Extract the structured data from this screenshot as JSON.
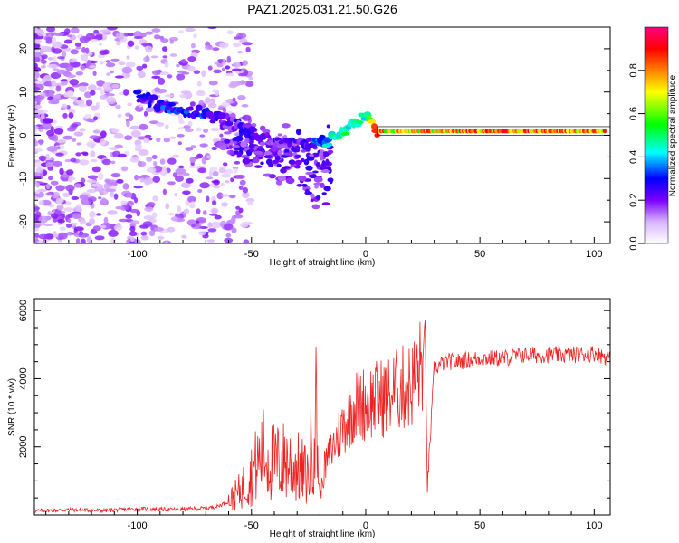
{
  "title": "PAZ1.2025.031.21.50.G26",
  "chart_data": [
    {
      "type": "heatmap",
      "xlabel": "Height of straight line (km)",
      "ylabel": "Frequency (Hz)",
      "xlim": [
        -145,
        107
      ],
      "ylim": [
        -25,
        25
      ],
      "xticks": [
        -100,
        -50,
        0,
        50,
        100
      ],
      "yticks": [
        -20,
        -10,
        0,
        10,
        20
      ],
      "colorbar": {
        "label": "Normalized spectral amplitude",
        "range": [
          0,
          1
        ],
        "ticks": [
          0.0,
          0.2,
          0.4,
          0.6,
          0.8
        ],
        "colors": [
          "#ffffff",
          "#d9b3ff",
          "#7a00ff",
          "#0000ff",
          "#00ffff",
          "#00ff00",
          "#ffff00",
          "#ff8000",
          "#ff0000",
          "#ff0080"
        ]
      },
      "tone_track": {
        "x": [
          -100,
          -90,
          -80,
          -70,
          -60,
          -50,
          -40,
          -30,
          -20,
          -15,
          -10,
          -5,
          0,
          5,
          20,
          50,
          80,
          105
        ],
        "freq": [
          9,
          7,
          6,
          5,
          3,
          1,
          -1,
          -2,
          -2,
          -1,
          1,
          3,
          4,
          1,
          1,
          1,
          1,
          1
        ],
        "amplitude": [
          0.25,
          0.3,
          0.3,
          0.3,
          0.2,
          0.25,
          0.2,
          0.2,
          0.35,
          0.45,
          0.5,
          0.45,
          0.4,
          0.9,
          0.85,
          0.95,
          0.95,
          0.95
        ]
      },
      "grid": false
    },
    {
      "type": "line",
      "xlabel": "Height of straight line (km)",
      "ylabel": "SNR (10 * v/v)",
      "xlim": [
        -145,
        107
      ],
      "ylim": [
        0,
        6350
      ],
      "xticks": [
        -100,
        -50,
        0,
        50,
        100
      ],
      "yticks": [
        2000,
        4000,
        6000
      ],
      "line_color": "#ee2222",
      "series": [
        {
          "x": [
            -145,
            -130,
            -115,
            -100,
            -85,
            -70,
            -65,
            -60,
            -55,
            -50,
            -45,
            -40,
            -35,
            -30,
            -25,
            -22,
            -20,
            -18,
            -15,
            -10,
            -5,
            0,
            5,
            10,
            15,
            20,
            25,
            26,
            27,
            30,
            35,
            40,
            50,
            60,
            70,
            80,
            90,
            100,
            107
          ],
          "values": [
            120,
            150,
            130,
            180,
            160,
            200,
            250,
            400,
            700,
            1200,
            1800,
            1500,
            1600,
            1400,
            1100,
            3300,
            500,
            1400,
            1900,
            2600,
            3200,
            3300,
            3400,
            3500,
            3700,
            3800,
            4500,
            5600,
            800,
            4300,
            4500,
            4500,
            4600,
            4600,
            4700,
            4700,
            4700,
            4750,
            4600
          ]
        }
      ],
      "grid": false
    }
  ]
}
